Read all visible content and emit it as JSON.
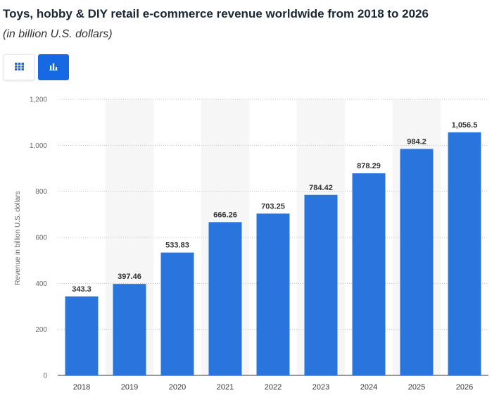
{
  "header": {
    "title": "Toys, hobby & DIY retail e-commerce revenue worldwide from 2018 to 2026",
    "subtitle": "(in billion U.S. dollars)"
  },
  "view_toggle": {
    "table_icon": "grid-table-icon",
    "chart_icon": "bar-chart-icon",
    "active": "chart"
  },
  "colors": {
    "bar": "#2a74dd",
    "active_toggle": "#1668e3",
    "band": "#f6f6f6"
  },
  "chart_data": {
    "type": "bar",
    "categories": [
      "2018",
      "2019",
      "2020",
      "2021",
      "2022",
      "2023",
      "2024",
      "2025",
      "2026"
    ],
    "values": [
      343.3,
      397.46,
      533.83,
      666.26,
      703.25,
      784.42,
      878.29,
      984.2,
      1056.5
    ],
    "data_labels": [
      "343.3",
      "397.46",
      "533.83",
      "666.26",
      "703.25",
      "784.42",
      "878.29",
      "984.2",
      "1,056.5"
    ],
    "ylabel": "Revenue in billion U.S. dollars",
    "xlabel": "",
    "ylim": [
      0,
      1200
    ],
    "yticks": [
      0,
      200,
      400,
      600,
      800,
      1000,
      1200
    ],
    "ytick_labels": [
      "0",
      "200",
      "400",
      "600",
      "800",
      "1,000",
      "1,200"
    ],
    "grid": true
  }
}
